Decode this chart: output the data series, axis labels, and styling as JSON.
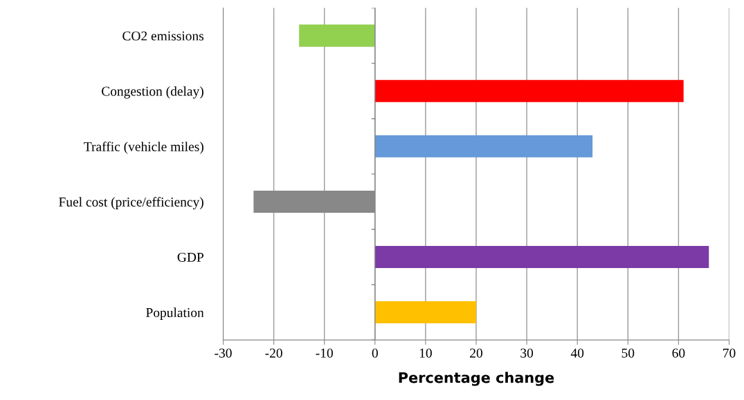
{
  "chart_data": {
    "type": "bar",
    "orientation": "horizontal",
    "xlabel": "Percentage change",
    "categories": [
      "CO2 emissions",
      "Congestion (delay)",
      "Traffic (vehicle miles)",
      "Fuel cost (price/efficiency)",
      "GDP",
      "Population"
    ],
    "values": [
      -15,
      61,
      43,
      -24,
      66,
      20
    ],
    "colors": [
      "#92d050",
      "#ff0000",
      "#6699d9",
      "#888888",
      "#7b3aa6",
      "#ffc000"
    ],
    "xlim": [
      -30,
      70
    ],
    "xticks": [
      -30,
      -20,
      -10,
      0,
      10,
      20,
      30,
      40,
      50,
      60,
      70
    ],
    "grid": "x"
  }
}
